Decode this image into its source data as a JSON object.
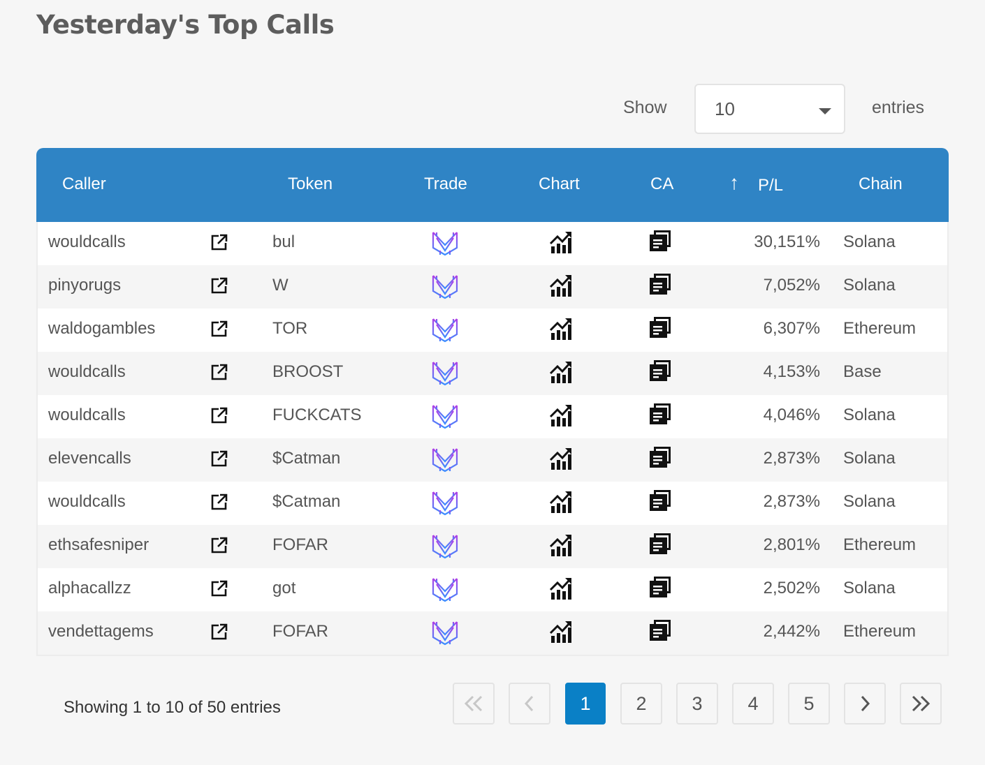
{
  "page": {
    "title": "Yesterday's Top Calls"
  },
  "length_control": {
    "show_label": "Show",
    "value": "10",
    "entries_label": "entries"
  },
  "table": {
    "headers": {
      "caller": "Caller",
      "token": "Token",
      "trade": "Trade",
      "chart": "Chart",
      "ca": "CA",
      "sort_arrow": "↑",
      "pl": "P/L",
      "chain": "Chain"
    },
    "rows": [
      {
        "caller": "wouldcalls",
        "token": "bul",
        "pl": "30,151%",
        "chain": "Solana"
      },
      {
        "caller": "pinyorugs",
        "token": "W",
        "pl": "7,052%",
        "chain": "Solana"
      },
      {
        "caller": "waldogambles",
        "token": "TOR",
        "pl": "6,307%",
        "chain": "Ethereum"
      },
      {
        "caller": "wouldcalls",
        "token": "BROOST",
        "pl": "4,153%",
        "chain": "Base"
      },
      {
        "caller": "wouldcalls",
        "token": "FUCKCATS",
        "pl": "4,046%",
        "chain": "Solana"
      },
      {
        "caller": "elevencalls",
        "token": "$Catman",
        "pl": "2,873%",
        "chain": "Solana"
      },
      {
        "caller": "wouldcalls",
        "token": "$Catman",
        "pl": "2,873%",
        "chain": "Solana"
      },
      {
        "caller": "ethsafesniper",
        "token": "FOFAR",
        "pl": "2,801%",
        "chain": "Ethereum"
      },
      {
        "caller": "alphacallzz",
        "token": "got",
        "pl": "2,502%",
        "chain": "Solana"
      },
      {
        "caller": "vendettagems",
        "token": "FOFAR",
        "pl": "2,442%",
        "chain": "Ethereum"
      }
    ],
    "row_icons": {
      "link": "external-link-icon",
      "trade": "trade-logo-icon",
      "chart": "chart-icon",
      "ca": "copy-icon"
    }
  },
  "info": "Showing 1 to 10 of 50 entries",
  "pagination": {
    "first": "«",
    "prev": "‹",
    "pages": [
      "1",
      "2",
      "3",
      "4",
      "5"
    ],
    "current": "1",
    "next": "›",
    "last": "»"
  },
  "colors": {
    "header_bg": "#2f84c5",
    "active_page": "#0a80c6",
    "page_bg": "#f6f6f6"
  }
}
